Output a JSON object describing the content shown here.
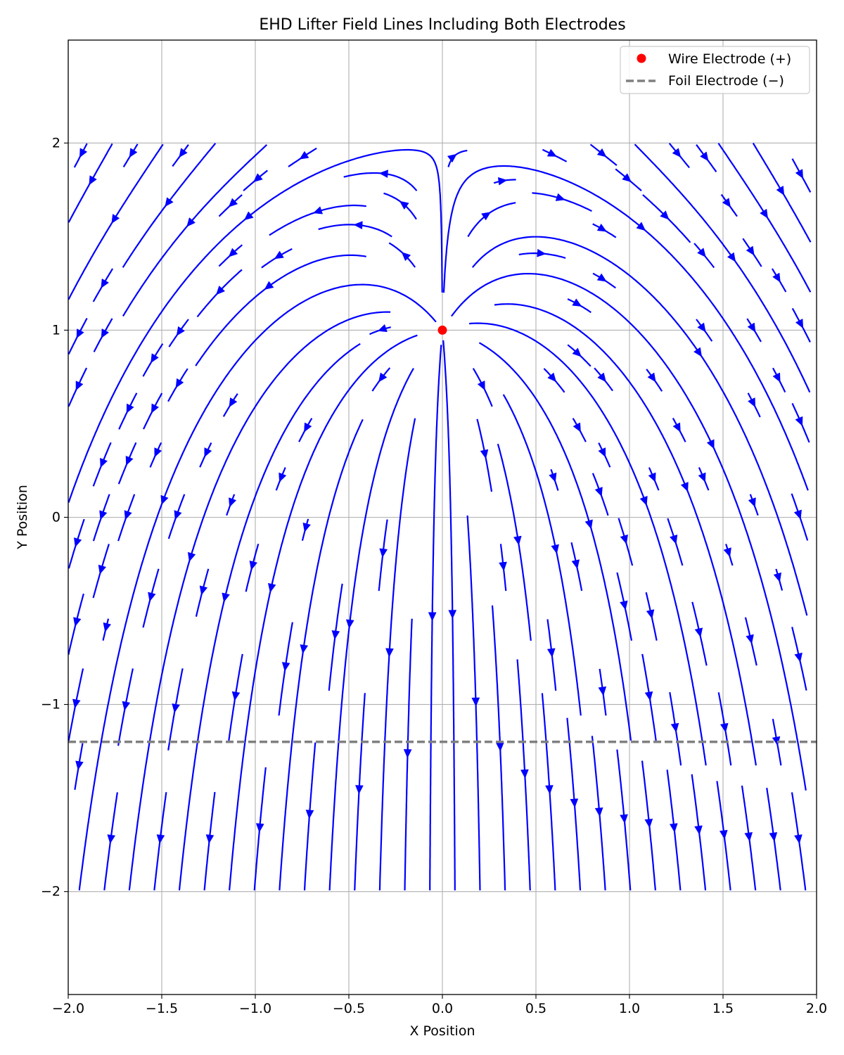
{
  "chart_data": {
    "type": "streamplot",
    "title": "EHD Lifter Field Lines Including Both Electrodes",
    "xlabel": "X Position",
    "ylabel": "Y Position",
    "xlim": [
      -2.0,
      2.0
    ],
    "ylim": [
      -2.55,
      2.55
    ],
    "field_region": {
      "x": [
        -2.0,
        2.0
      ],
      "y": [
        -2.0,
        2.0
      ]
    },
    "xticks": [
      -2.0,
      -1.5,
      -1.0,
      -0.5,
      0.0,
      0.5,
      1.0,
      1.5,
      2.0
    ],
    "xtick_labels": [
      "−2.0",
      "−1.5",
      "−1.0",
      "−0.5",
      "0.0",
      "0.5",
      "1.0",
      "1.5",
      "2.0"
    ],
    "yticks": [
      -2,
      -1,
      0,
      1,
      2
    ],
    "ytick_labels": [
      "−2",
      "−1",
      "0",
      "1",
      "2"
    ],
    "grid": true,
    "legend_position": "top-right",
    "series": [
      {
        "name": "Wire Electrode (+)",
        "kind": "point",
        "x": 0.0,
        "y": 1.0,
        "color": "#ff0000"
      },
      {
        "name": "Foil Electrode (−)",
        "kind": "hline",
        "y": -1.2,
        "color": "#808080",
        "linestyle": "dashed"
      }
    ],
    "field": {
      "kind": "point_source",
      "source": {
        "x": 0.0,
        "y": 1.0
      },
      "uniform_field": {
        "x": 0.0,
        "y": -1.0
      },
      "stream_color": "#0000ff"
    }
  }
}
